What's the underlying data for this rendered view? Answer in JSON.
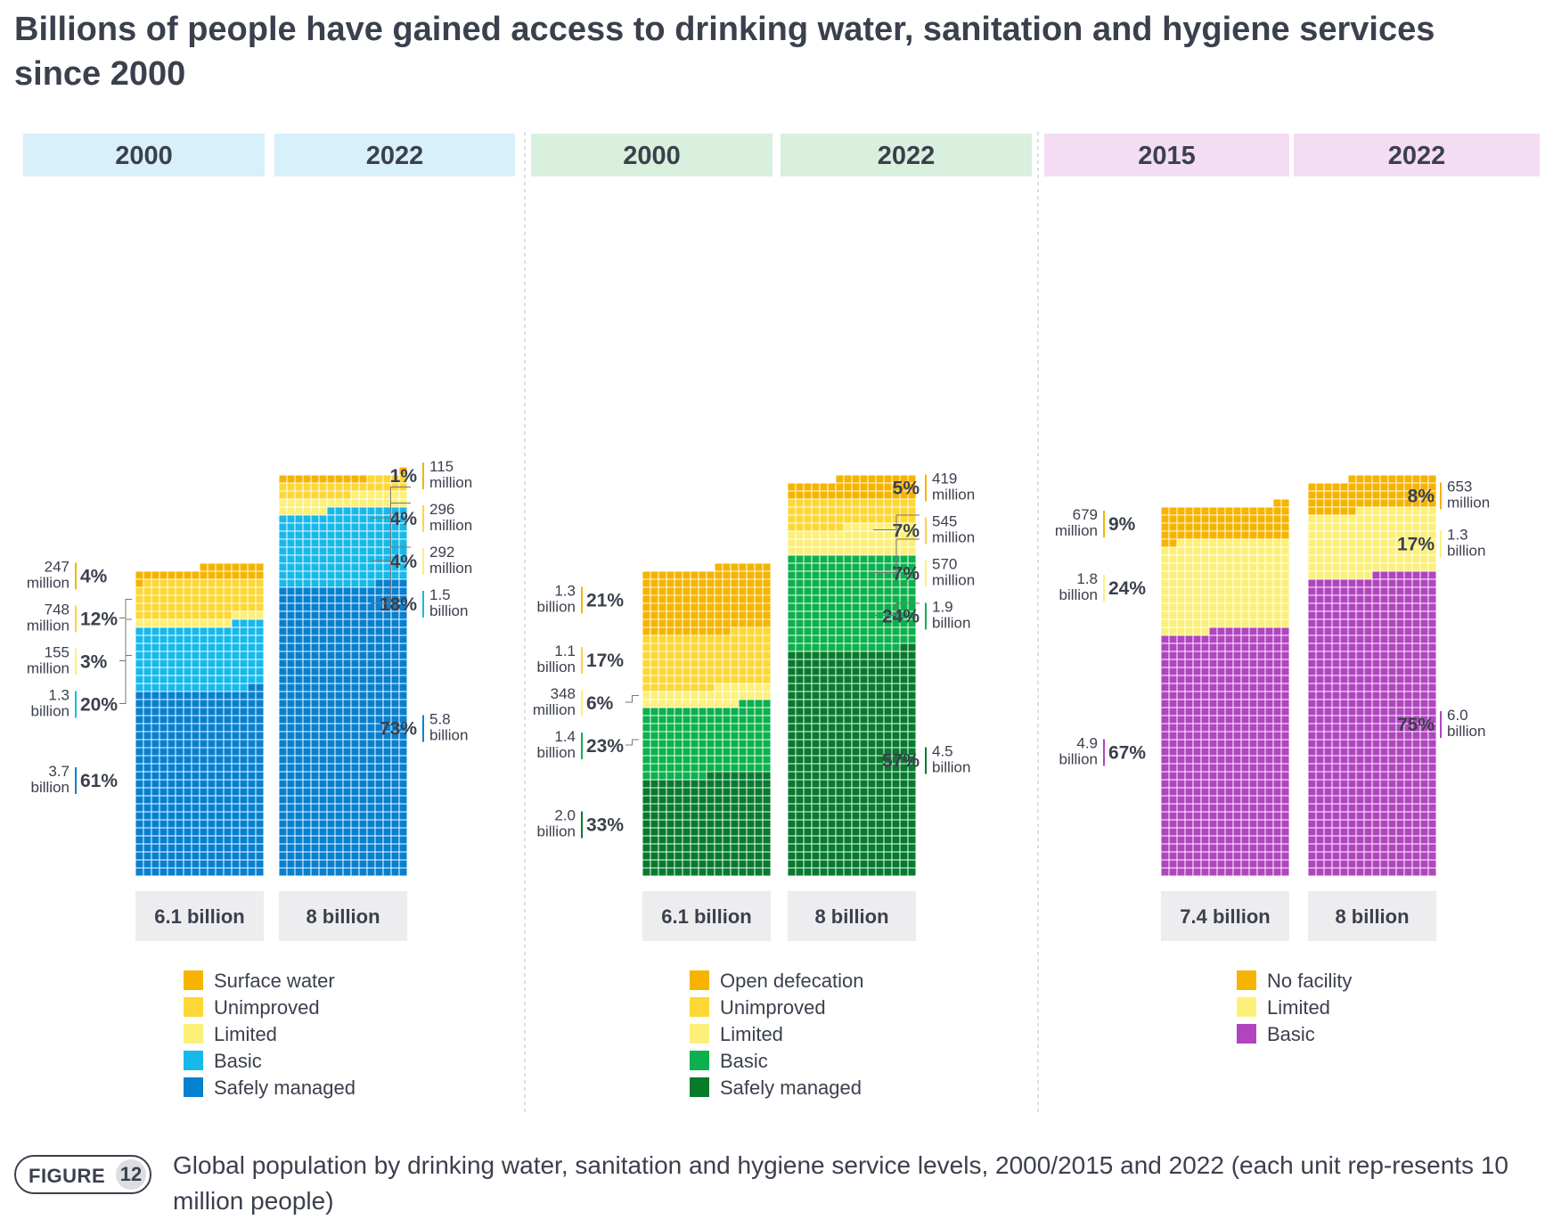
{
  "title": "Billions of people have gained access to drinking water, sanitation and hygiene services since 2000",
  "caption": {
    "figure_label": "FIGURE",
    "figure_number": "12",
    "text": "Global population by drinking water, sanitation and hygiene service levels, 2000/2015 and 2022 (each unit rep-resents 10 million people)"
  },
  "colors": {
    "water": [
      "#f6b400",
      "#fdd735",
      "#fdf07a",
      "#17b8ea",
      "#0880d0"
    ],
    "sanitation": [
      "#f6b400",
      "#fdd735",
      "#fdf07a",
      "#0cb04c",
      "#067a2d"
    ],
    "hygiene": [
      "#f6b400",
      "#fdf07a",
      "#b045bf"
    ],
    "header_water": "#d8f0fa",
    "header_sanitation": "#d8f0dd",
    "header_hygiene": "#f4dcf3",
    "total_box": "#ededef",
    "divider": "#cccccc"
  },
  "chart_data": [
    {
      "type": "waffle",
      "name": "Drinking water",
      "unit": "each unit represents 10 million people",
      "categories": [
        "Surface water",
        "Unimproved",
        "Limited",
        "Basic",
        "Safely managed"
      ],
      "bars": [
        {
          "year": "2000",
          "total_label": "6.1 billion",
          "values": [
            24.7,
            74.8,
            15.5,
            130,
            370
          ],
          "labels": [
            {
              "pct": "4%",
              "pop": [
                "247",
                "million"
              ]
            },
            {
              "pct": "12%",
              "pop": [
                "748",
                "million"
              ]
            },
            {
              "pct": "3%",
              "pop": [
                "155",
                "million"
              ]
            },
            {
              "pct": "20%",
              "pop": [
                "1.3",
                "billion"
              ]
            },
            {
              "pct": "61%",
              "pop": [
                "3.7",
                "billion"
              ]
            }
          ]
        },
        {
          "year": "2022",
          "total_label": "8 billion",
          "values": [
            11.5,
            29.6,
            29.2,
            150,
            580
          ],
          "labels": [
            {
              "pct": "1%",
              "pop": [
                "115",
                "million"
              ]
            },
            {
              "pct": "4%",
              "pop": [
                "296",
                "million"
              ]
            },
            {
              "pct": "4%",
              "pop": [
                "292",
                "million"
              ]
            },
            {
              "pct": "18%",
              "pop": [
                "1.5",
                "billion"
              ]
            },
            {
              "pct": "73%",
              "pop": [
                "5.8",
                "billion"
              ]
            }
          ]
        }
      ]
    },
    {
      "type": "waffle",
      "name": "Sanitation",
      "unit": "each unit represents 10 million people",
      "categories": [
        "Open defecation",
        "Unimproved",
        "Limited",
        "Basic",
        "Safely managed"
      ],
      "bars": [
        {
          "year": "2000",
          "total_label": "6.1 billion",
          "values": [
            130,
            110,
            34.8,
            140,
            200
          ],
          "labels": [
            {
              "pct": "21%",
              "pop": [
                "1.3",
                "billion"
              ]
            },
            {
              "pct": "17%",
              "pop": [
                "1.1",
                "billion"
              ]
            },
            {
              "pct": "6%",
              "pop": [
                "348",
                "million"
              ]
            },
            {
              "pct": "23%",
              "pop": [
                "1.4",
                "billion"
              ]
            },
            {
              "pct": "33%",
              "pop": [
                "2.0",
                "billion"
              ]
            }
          ]
        },
        {
          "year": "2022",
          "total_label": "8 billion",
          "values": [
            41.9,
            54.5,
            57,
            190,
            450
          ],
          "labels": [
            {
              "pct": "5%",
              "pop": [
                "419",
                "million"
              ]
            },
            {
              "pct": "7%",
              "pop": [
                "545",
                "million"
              ]
            },
            {
              "pct": "7%",
              "pop": [
                "570",
                "million"
              ]
            },
            {
              "pct": "24%",
              "pop": [
                "1.9",
                "billion"
              ]
            },
            {
              "pct": "57%",
              "pop": [
                "4.5",
                "billion"
              ]
            }
          ]
        }
      ]
    },
    {
      "type": "waffle",
      "name": "Hygiene",
      "unit": "each unit represents 10 million people",
      "categories": [
        "No facility",
        "Limited",
        "Basic"
      ],
      "bars": [
        {
          "year": "2015",
          "total_label": "7.4 billion",
          "values": [
            67.9,
            180,
            490
          ],
          "labels": [
            {
              "pct": "9%",
              "pop": [
                "679",
                "million"
              ]
            },
            {
              "pct": "24%",
              "pop": [
                "1.8",
                "billion"
              ]
            },
            {
              "pct": "67%",
              "pop": [
                "4.9",
                "billion"
              ]
            }
          ]
        },
        {
          "year": "2022",
          "total_label": "8 billion",
          "values": [
            65.3,
            130,
            600
          ],
          "labels": [
            {
              "pct": "8%",
              "pop": [
                "653",
                "million"
              ]
            },
            {
              "pct": "17%",
              "pop": [
                "1.3",
                "billion"
              ]
            },
            {
              "pct": "75%",
              "pop": [
                "6.0",
                "billion"
              ]
            }
          ]
        }
      ]
    }
  ]
}
